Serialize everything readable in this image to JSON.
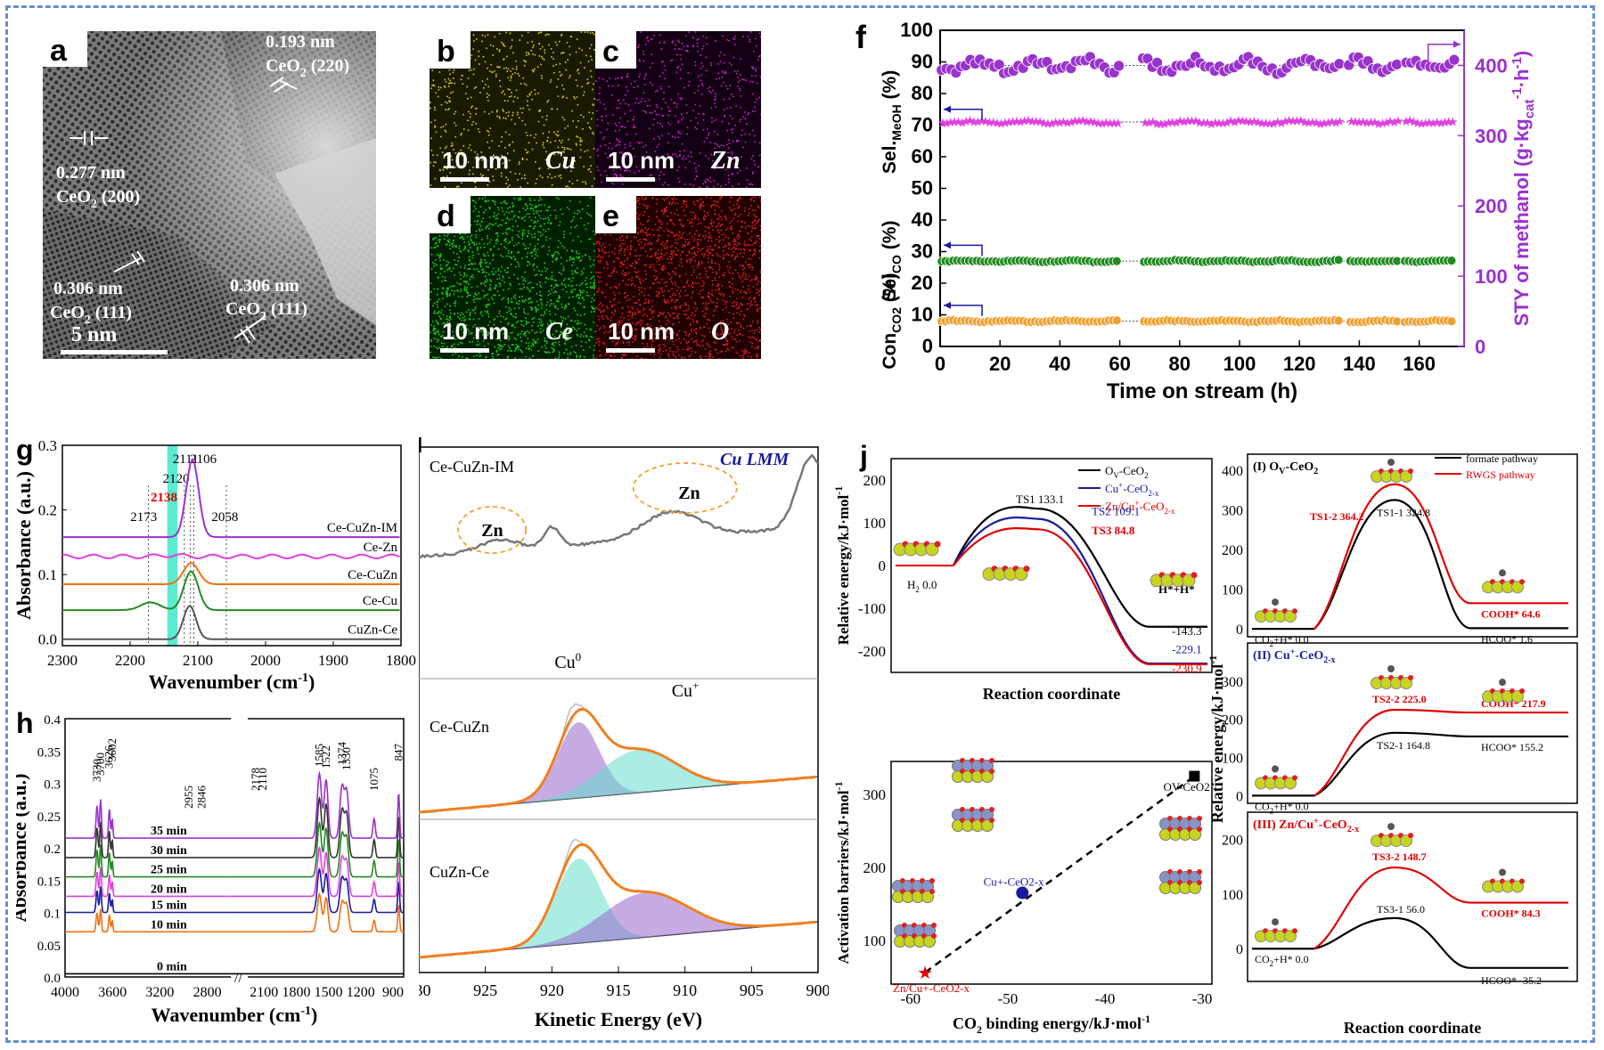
{
  "colors": {
    "frame": "#6a8ed8",
    "purple": "#9933cc",
    "pink": "#e040e0",
    "green": "#228b22",
    "orange": "#f0a030",
    "red": "#e00000",
    "blue": "#1a1aa0"
  },
  "panel_a": {
    "letter": "a",
    "labels": [
      {
        "d": "0.193 nm",
        "p": "CeO",
        "s": "2",
        "t": " (220)"
      },
      {
        "d": "0.277 nm",
        "p": "CeO",
        "s": "2",
        "t": " (200)"
      },
      {
        "d": "0.306 nm",
        "p": "CeO",
        "s": "2",
        "t": " (111)"
      },
      {
        "d": "0.306 nm",
        "p": "CeO",
        "s": "2",
        "t": " (111)"
      }
    ],
    "scale": "5 nm"
  },
  "maps": [
    {
      "letter": "b",
      "scale": "10 nm",
      "element": "Cu",
      "color": "#e0d020",
      "bg": "#1a1a00"
    },
    {
      "letter": "c",
      "scale": "10 nm",
      "element": "Zn",
      "color": "#d020d0",
      "bg": "#140014"
    },
    {
      "letter": "d",
      "scale": "10 nm",
      "element": "Ce",
      "color": "#20d020",
      "bg": "#002000"
    },
    {
      "letter": "e",
      "scale": "10 nm",
      "element": "O",
      "color": "#e02020",
      "bg": "#200000"
    }
  ],
  "panel_f": {
    "letter": "f",
    "xlabel": "Time on stream (h)",
    "ylabel_left": [
      "Con",
      "CO2",
      "(%)",
      "Sel",
      "CO",
      "(%)",
      "Sel.",
      "MeOH",
      "(%)"
    ],
    "ylabel_right": "STY of methanol (g·kg",
    "ylabel_right_sub": "cat",
    "ylabel_right_end": "·h",
    "ylabel_right_sup": "-1",
    "ylabel_right_sup2": "-1",
    "ylabel_right_close": ")"
  },
  "chart_data": [
    {
      "type": "scatter",
      "title": "f",
      "xlabel": "Time on stream (h)",
      "ylabel": "Selectivity / Conversion (%)",
      "y2label": "STY of methanol (g·kgcat-1·h-1)",
      "xlim": [
        0,
        175
      ],
      "ylim": [
        0,
        100
      ],
      "y2lim": [
        0,
        450
      ],
      "xticks": [
        0,
        20,
        40,
        60,
        80,
        100,
        120,
        140,
        160
      ],
      "yticks": [
        0,
        10,
        20,
        30,
        40,
        50,
        60,
        70,
        80,
        90,
        100
      ],
      "y2ticks": [
        0,
        100,
        200,
        300,
        400
      ],
      "series": [
        {
          "name": "STY of methanol",
          "axis": "right",
          "level": 400,
          "color": "#9933cc"
        },
        {
          "name": "Sel.MeOH",
          "axis": "left",
          "level": 71,
          "color": "#e040e0"
        },
        {
          "name": "SelCO",
          "axis": "left",
          "level": 27,
          "color": "#228b22"
        },
        {
          "name": "ConCO2",
          "axis": "left",
          "level": 8,
          "color": "#f0a030"
        }
      ],
      "gaps_h": [
        [
          60,
          67
        ],
        [
          134,
          136
        ],
        [
          153,
          155
        ]
      ]
    },
    {
      "type": "line",
      "title": "g",
      "xlabel": "Wavenumber (cm",
      "xlabel_sup": "-1",
      "xlabel_end": ")",
      "ylabel": "Absorbance (a.u.)",
      "xlim": [
        2300,
        1800
      ],
      "ylim": [
        -0.01,
        0.3
      ],
      "xticks": [
        2300,
        2200,
        2100,
        2000,
        1900,
        1800
      ],
      "yticks": [
        "0.0",
        "0.1",
        "0.2",
        "0.3"
      ],
      "peaks": [
        "2173",
        "2138",
        "2120",
        "2111",
        "2106",
        "2058"
      ],
      "series": [
        {
          "name": "Ce-CuZn-IM",
          "color": "#9933cc",
          "offset": 0.158
        },
        {
          "name": "Ce-Zn",
          "color": "#e040e0",
          "offset": 0.128
        },
        {
          "name": "Ce-CuZn",
          "color": "#f07010",
          "offset": 0.085
        },
        {
          "name": "Ce-Cu",
          "color": "#228b22",
          "offset": 0.045
        },
        {
          "name": "CuZn-Ce",
          "color": "#555555",
          "offset": 0.0
        }
      ]
    },
    {
      "type": "line",
      "title": "h",
      "xlabel": "Wavenumber (cm",
      "xlabel_sup": "-1",
      "xlabel_end": ")",
      "ylabel": "Absorbance (a.u.)",
      "ylim": [
        0,
        0.4
      ],
      "xticks": [
        "4000",
        "3600",
        "3200",
        "2800",
        "2100",
        "1800",
        "1500",
        "1200",
        "900"
      ],
      "yticks": [
        "0.0",
        "0.05",
        "0.1",
        "0.15",
        "0.2",
        "0.25",
        "0.3",
        "0.35",
        "0.4"
      ],
      "peaks": [
        "3730",
        "3700",
        "3626",
        "3602",
        "2955",
        "2846",
        "2178",
        "2110",
        "1585",
        "1522",
        "1374",
        "1330",
        "1075",
        "847"
      ],
      "series": [
        "0 min",
        "10 min",
        "15 min",
        "20 min",
        "25 min",
        "30 min",
        "35 min"
      ]
    },
    {
      "type": "line",
      "title": "i",
      "xlabel": "Kinetic Energy (eV)",
      "ylabel": "Counts",
      "xlim": [
        930,
        900
      ],
      "xticks": [
        "930",
        "925",
        "920",
        "915",
        "910",
        "905",
        "900"
      ],
      "spectra": [
        "Ce-CuZn-IM",
        "Ce-CuZn",
        "CuZn-Ce"
      ],
      "annotations": [
        "Cu LMM",
        "Zn",
        "Zn",
        "Cu",
        "0",
        "Cu",
        "+"
      ]
    },
    {
      "type": "line",
      "title": "j-top",
      "xlabel": "Reaction coordinate",
      "ylabel": "Relative energy/kJ·mol",
      "ylabel_sup": "-1",
      "ylim": [
        -250,
        250
      ],
      "yticks": [
        "-200",
        "-100",
        "0",
        "100",
        "200"
      ],
      "series": [
        {
          "name": "O",
          "sub": "V",
          "rest": "-CeO",
          "sub2": "2",
          "ts": 133.1,
          "final": -143.3,
          "color": "#000000"
        },
        {
          "name": "Cu",
          "sup": "+",
          "rest": "-CeO",
          "sub2": "2-x",
          "ts": 109.1,
          "final": -229.1,
          "color": "#1a1aa0"
        },
        {
          "name": "Zn/Cu",
          "sup": "+",
          "rest": "-CeO",
          "sub2": "2-x",
          "ts": 84.8,
          "final": -230.9,
          "color": "#e00000"
        }
      ],
      "labels": {
        "start": "H",
        "start_sub": "2",
        "start_val": " 0.0",
        "ts1": "TS1 133.1",
        "ts2": "TS2 109.1",
        "ts3": "TS3 84.8",
        "end": "H*+H*",
        "v1": "-143.3",
        "v2": "-229.1",
        "v3": "-230.9"
      }
    },
    {
      "type": "scatter",
      "title": "j-bottom",
      "xlabel": "CO",
      "xlabel_sub": "2",
      "xlabel_rest": " binding energy/kJ·mol",
      "xlabel_sup": "-1",
      "ylabel": "Activation barriers/kJ·mol",
      "ylabel_sup": "-1",
      "xlim": [
        -62,
        -29
      ],
      "ylim": [
        40,
        345
      ],
      "xticks": [
        "-60",
        "-50",
        "-40",
        "-30"
      ],
      "yticks": [
        "100",
        "200",
        "300"
      ],
      "points": [
        {
          "x": -58.5,
          "y": 56,
          "label": "Zn/Cu+-CeO2-x",
          "color": "#e00000"
        },
        {
          "x": -48.5,
          "y": 165,
          "label": "Cu+-CeO2-x",
          "color": "#1a1aa0"
        },
        {
          "x": -30.8,
          "y": 324.8,
          "label": "OV-CeO2",
          "color": "#000000"
        }
      ]
    },
    {
      "type": "line",
      "title": "j-right",
      "xlabel": "Reaction coordinate",
      "ylabel": "Relative energy/kJ·mol",
      "ylabel_sup": "-1",
      "legend": [
        "formate pathway",
        "RWGS pathway"
      ],
      "subpanels": [
        {
          "title": "(I) O",
          "title_sub": "V",
          "title_rest": "-CeO",
          "title_sub2": "2",
          "title_color": "#000000",
          "ylim": [
            -20,
            440
          ],
          "yticks": [
            "0",
            "100",
            "200",
            "300",
            "400"
          ],
          "start": "CO",
          "start_sub": "2",
          "start_rest": "+H* 0.0",
          "formate": {
            "ts": 324.8,
            "end": 1.6
          },
          "rwgs": {
            "ts": 364.2,
            "end": 64.6
          },
          "labels": {
            "ts_f": "TS1-1 324.8",
            "ts_r": "TS1-2 364.2",
            "end_f": "HCOO* 1.6",
            "end_r": "COOH* 64.6"
          }
        },
        {
          "title": "(II) Cu",
          "title_sup": "+",
          "title_rest": "-CeO",
          "title_sub2": "2-x",
          "title_color": "#1a1aa0",
          "ylim": [
            -20,
            400
          ],
          "yticks": [
            "0",
            "100",
            "200",
            "300"
          ],
          "start": "CO",
          "start_sub": "2",
          "start_rest": "+H* 0.0",
          "formate": {
            "ts": 164.8,
            "end": 155.2
          },
          "rwgs": {
            "ts": 225.0,
            "end": 217.9
          },
          "labels": {
            "ts_f": "TS2-1 164.8",
            "ts_r": "TS2-2 225.0",
            "end_f": "HCOO* 155.2",
            "end_r": "COOH* 217.9"
          }
        },
        {
          "title": "(III) Zn/Cu",
          "title_sup": "+",
          "title_rest": "-CeO",
          "title_sub2": "2-x",
          "title_color": "#e00000",
          "ylim": [
            -60,
            250
          ],
          "yticks": [
            "0",
            "100",
            "200"
          ],
          "start": "CO",
          "start_sub": "2",
          "start_rest": "+H* 0.0",
          "formate": {
            "ts": 56.0,
            "end": -35.2
          },
          "rwgs": {
            "ts": 148.7,
            "end": 84.3
          },
          "labels": {
            "ts_f": "TS3-1 56.0",
            "ts_r": "TS3-2 148.7",
            "end_f": "HCOO* -35.2",
            "end_r": "COOH* 84.3"
          }
        }
      ]
    }
  ]
}
